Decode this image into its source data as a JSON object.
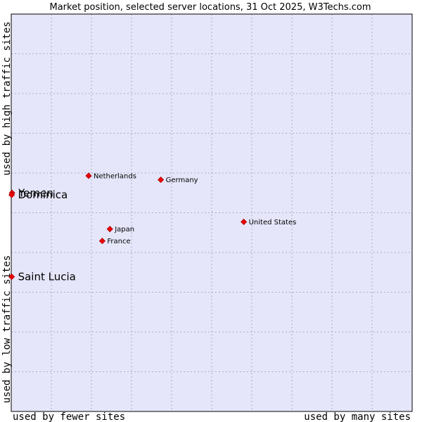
{
  "chart_data": {
    "type": "scatter",
    "title": "Market position, selected server locations, 31 Oct 2025, W3Techs.com",
    "xlabel_low": "used by fewer sites",
    "xlabel_high": "used by many sites",
    "ylabel_low": "used by low traffic sites",
    "ylabel_high": "used by high traffic sites",
    "xlim": [
      0,
      10
    ],
    "ylim": [
      0,
      10
    ],
    "grid": true,
    "points": [
      {
        "label": "Netherlands",
        "x": 1.93,
        "y": 5.93,
        "size": "small"
      },
      {
        "label": "Germany",
        "x": 3.73,
        "y": 5.83,
        "size": "small"
      },
      {
        "label": "United States",
        "x": 5.8,
        "y": 4.77,
        "size": "small"
      },
      {
        "label": "Japan",
        "x": 2.46,
        "y": 4.59,
        "size": "small"
      },
      {
        "label": "France",
        "x": 2.27,
        "y": 4.29,
        "size": "small"
      },
      {
        "label": "Yemen",
        "x": 0.02,
        "y": 5.5,
        "size": "large"
      },
      {
        "label": "Dominica",
        "x": 0.01,
        "y": 5.45,
        "size": "large"
      },
      {
        "label": "Saint Lucia",
        "x": 0.01,
        "y": 3.39,
        "size": "large"
      }
    ],
    "colors": {
      "plot_bg": "#e6e6fa",
      "grid": "#aaaacc",
      "marker": "#ee0000"
    }
  }
}
